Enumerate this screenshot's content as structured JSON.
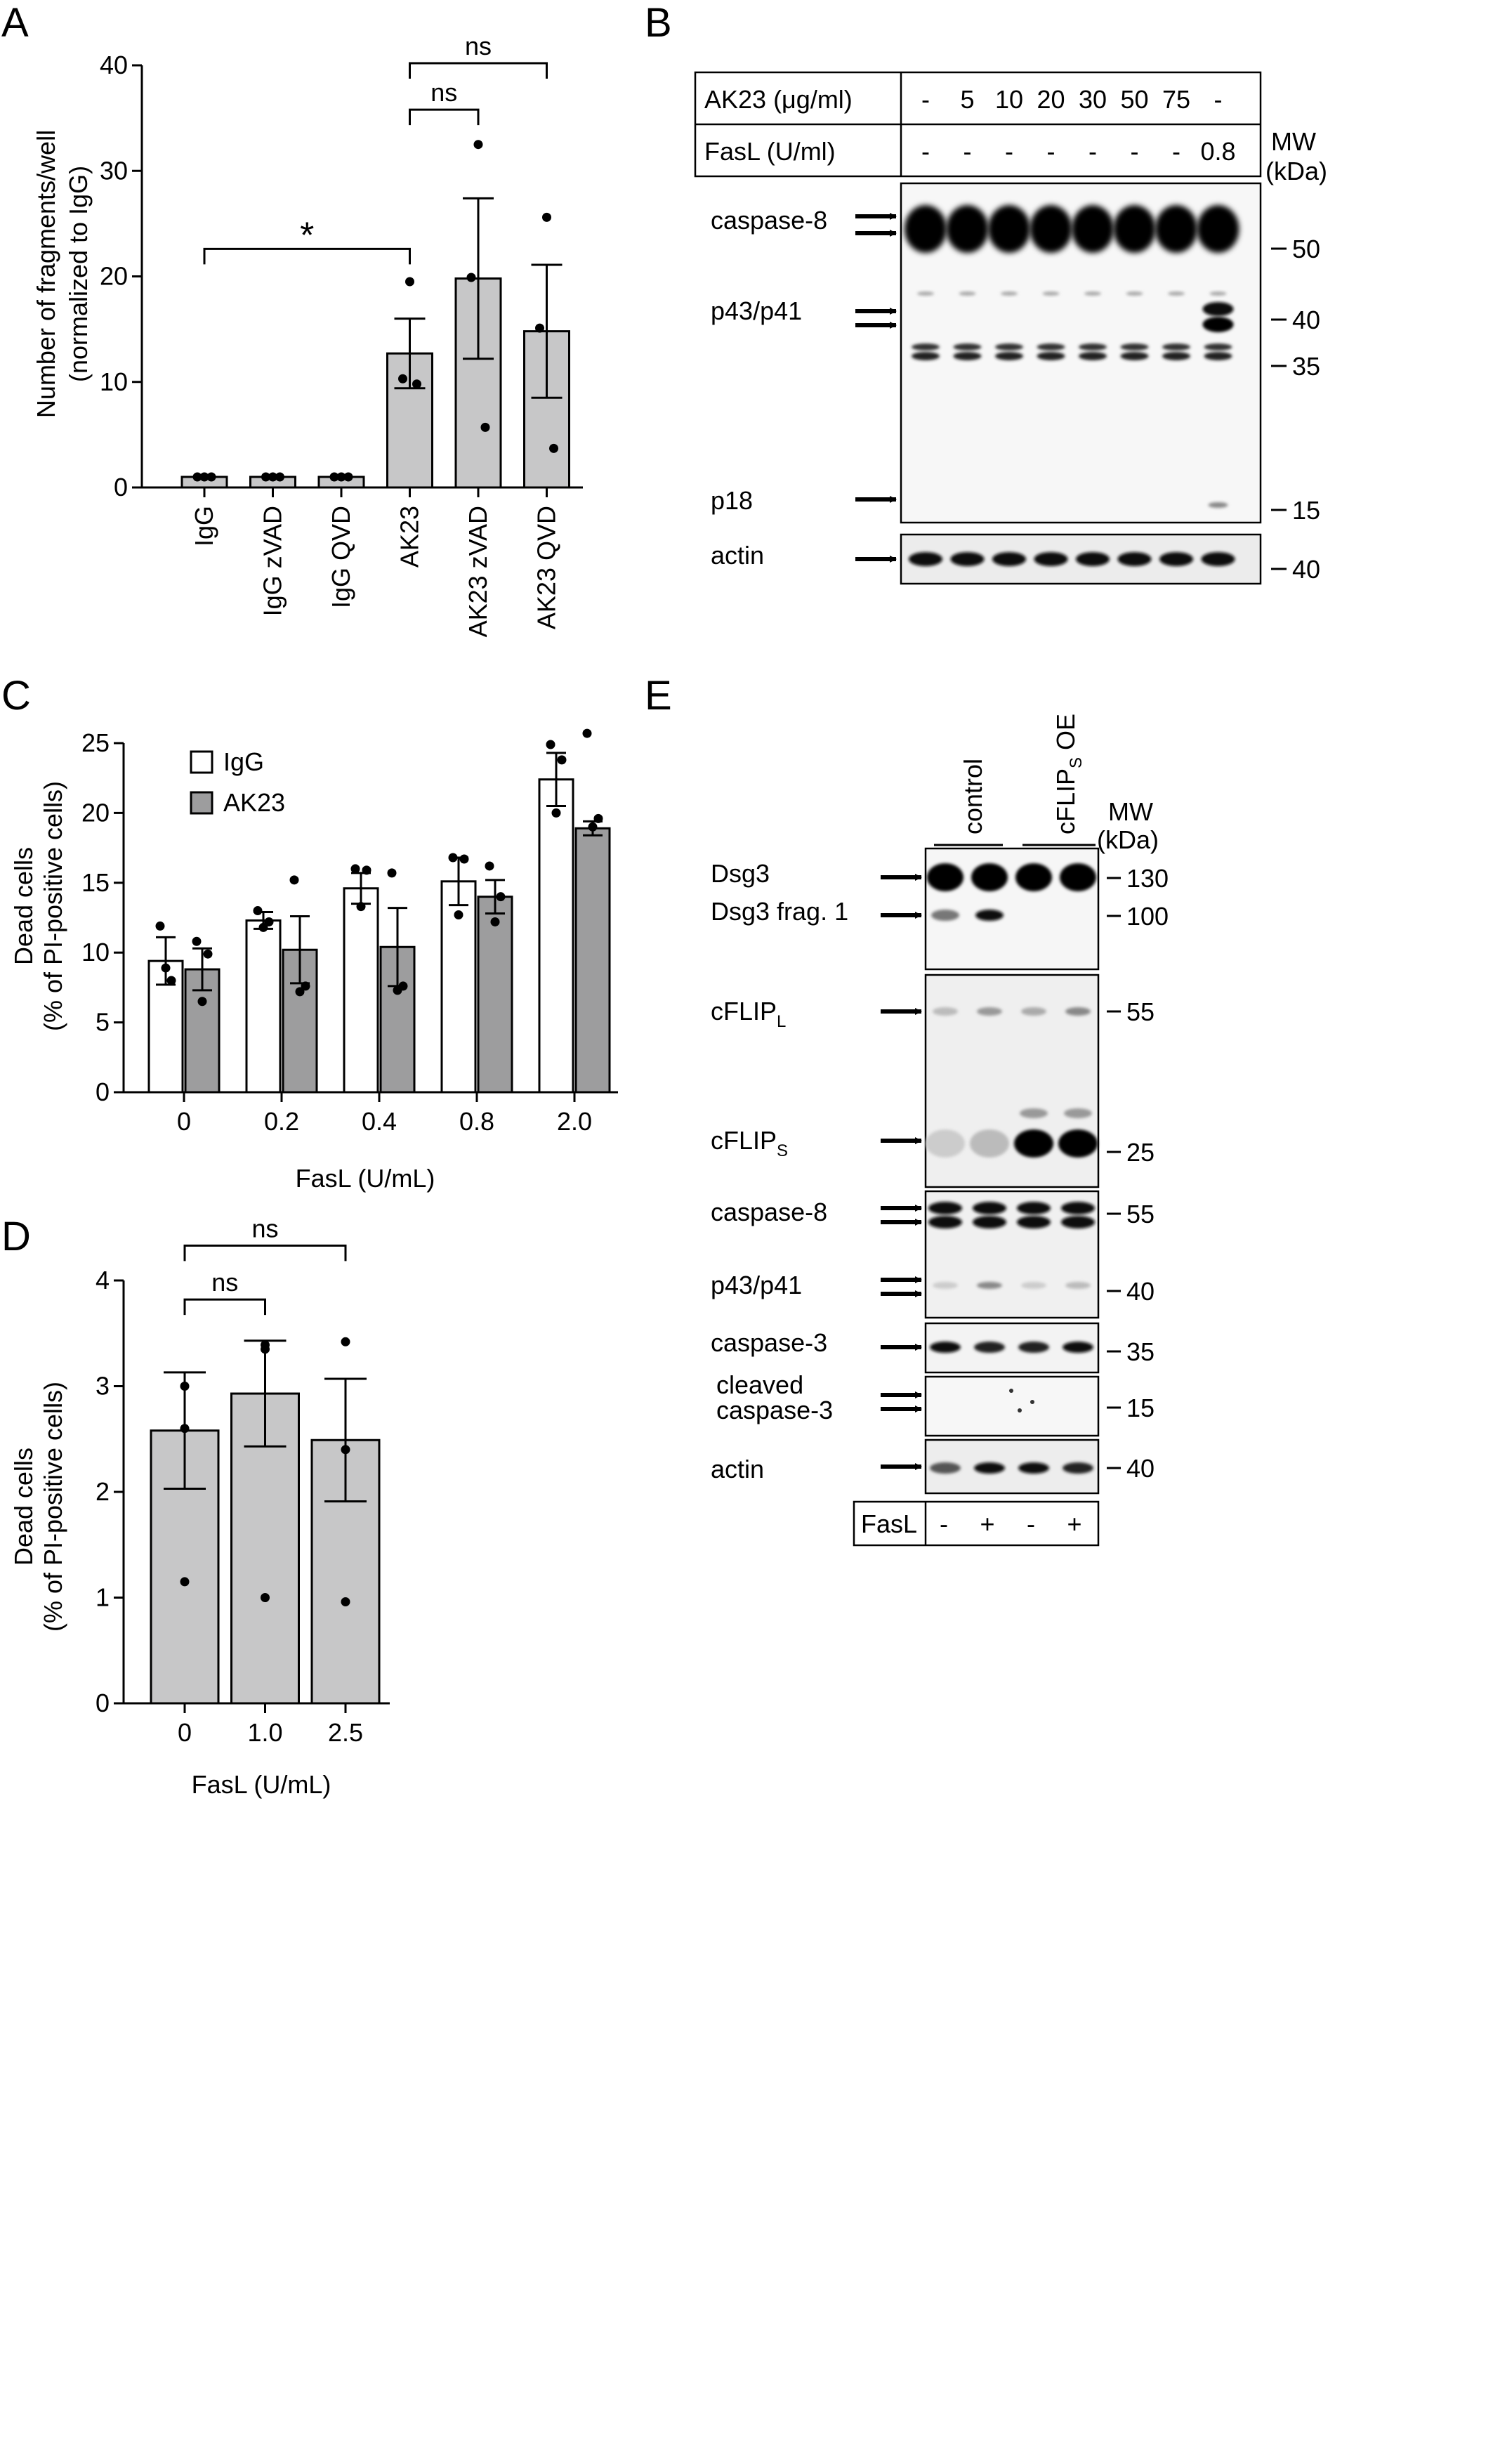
{
  "panels": {
    "A": {
      "letter": "A",
      "chart_data": {
        "type": "bar",
        "ylabel": "Number of fragments/well",
        "ylabel2": "(normalized to IgG)",
        "ylim": [
          0,
          40
        ],
        "yticks": [
          "0",
          "10",
          "20",
          "30",
          "40"
        ],
        "categories": [
          "IgG",
          "IgG zVAD",
          "IgG QVD",
          "AK23",
          "AK23 zVAD",
          "AK23 QVD"
        ],
        "values": [
          1,
          1,
          1,
          12.7,
          19.8,
          14.8
        ],
        "errors": [
          0,
          0,
          0,
          3.3,
          7.6,
          6.3
        ],
        "points": [
          [
            1,
            1,
            1
          ],
          [
            1,
            1,
            1
          ],
          [
            1,
            1,
            1
          ],
          [
            19.5,
            10.3,
            9.8
          ],
          [
            32.5,
            19.9,
            5.7
          ],
          [
            25.6,
            15.1,
            3.7
          ]
        ],
        "annotations": [
          {
            "label": "*",
            "from": 0,
            "to": 3,
            "level": 22.6
          },
          {
            "label": "ns",
            "from": 3,
            "to": 4,
            "level": 35.8
          },
          {
            "label": "ns",
            "from": 3,
            "to": 5,
            "level": 40.2
          }
        ]
      }
    },
    "B": {
      "letter": "B",
      "header": {
        "row1_label": "AK23 (μg/ml)",
        "row1_values": [
          "-",
          "5",
          "10",
          "20",
          "30",
          "50",
          "75",
          "-"
        ],
        "row2_label": "FasL (U/ml)",
        "row2_values": [
          "-",
          "-",
          "-",
          "-",
          "-",
          "-",
          "-",
          "0.8"
        ]
      },
      "mw_title": [
        "MW",
        "(kDa)"
      ],
      "labels": {
        "caspase8": "caspase-8",
        "p43p41": "p43/p41",
        "p18": "p18",
        "actin": "actin"
      },
      "markers": [
        "50",
        "40",
        "35",
        "15",
        "40"
      ]
    },
    "C": {
      "letter": "C",
      "chart_data": {
        "type": "bar",
        "ylabel": "Dead cells",
        "ylabel2": "(% of PI-positive cells)",
        "xlabel": "FasL (U/mL)",
        "ylim": [
          0,
          25
        ],
        "yticks": [
          "0",
          "5",
          "10",
          "15",
          "20",
          "25"
        ],
        "categories": [
          "0",
          "0.2",
          "0.4",
          "0.8",
          "2.0"
        ],
        "legend_placement": "top-left",
        "series": [
          {
            "name": "IgG",
            "color": "#ffffff",
            "values": [
              9.4,
              12.3,
              14.6,
              15.1,
              22.4
            ],
            "errors": [
              1.7,
              0.6,
              1.1,
              1.7,
              1.9
            ],
            "points": [
              [
                11.9,
                8.0,
                8.9
              ],
              [
                13.0,
                12.2,
                11.8
              ],
              [
                16.0,
                15.9,
                13.3
              ],
              [
                16.8,
                16.7,
                12.7
              ],
              [
                24.9,
                23.8,
                20.0
              ]
            ]
          },
          {
            "name": "AK23",
            "color": "#9d9d9e",
            "values": [
              8.8,
              10.2,
              10.4,
              14.0,
              18.9
            ],
            "errors": [
              1.5,
              2.4,
              2.8,
              1.2,
              0.5
            ],
            "points": [
              [
                10.8,
                9.9,
                6.5
              ],
              [
                15.2,
                7.6,
                7.2
              ],
              [
                15.7,
                7.6,
                7.3
              ],
              [
                16.2,
                14.0,
                12.2
              ],
              [
                25.7,
                19.6,
                19.0
              ]
            ]
          }
        ]
      }
    },
    "D": {
      "letter": "D",
      "chart_data": {
        "type": "bar",
        "ylabel": "Dead cells",
        "ylabel2": "(% of PI-positive cells)",
        "xlabel": "FasL (U/mL)",
        "ylim": [
          0,
          4
        ],
        "yticks": [
          "0",
          "1",
          "2",
          "3",
          "4"
        ],
        "categories": [
          "0",
          "1.0",
          "2.5"
        ],
        "values": [
          2.58,
          2.93,
          2.49
        ],
        "errors": [
          0.55,
          0.5,
          0.58
        ],
        "points": [
          [
            3.0,
            2.6,
            1.15
          ],
          [
            3.39,
            3.35,
            1.0
          ],
          [
            3.42,
            2.4,
            0.96
          ]
        ],
        "annotations": [
          {
            "label": "ns",
            "from": 0,
            "to": 1,
            "level": 3.82
          },
          {
            "label": "ns",
            "from": 0,
            "to": 2,
            "level": 4.33
          }
        ]
      }
    },
    "E": {
      "letter": "E",
      "columns": [
        "control",
        "cFLIP",
        "S",
        " OE"
      ],
      "mw_title": [
        "MW",
        "(kDa)"
      ],
      "labels": {
        "dsg3": "Dsg3",
        "dsg3frag": "Dsg3 frag. 1",
        "cflipl": "cFLIP",
        "cflipl_sub": "L",
        "cflips": "cFLIP",
        "cflips_sub": "S",
        "caspase8": "caspase-8",
        "p43p41": "p43/p41",
        "caspase3": "caspase-3",
        "cleaved1": "cleaved",
        "cleaved2": "caspase-3",
        "actin": "actin"
      },
      "markers": [
        "130",
        "100",
        "55",
        "25",
        "55",
        "40",
        "35",
        "15",
        "40"
      ],
      "fasl_label": "FasL",
      "fasl_values": [
        "-",
        "+",
        "-",
        "+"
      ]
    }
  }
}
